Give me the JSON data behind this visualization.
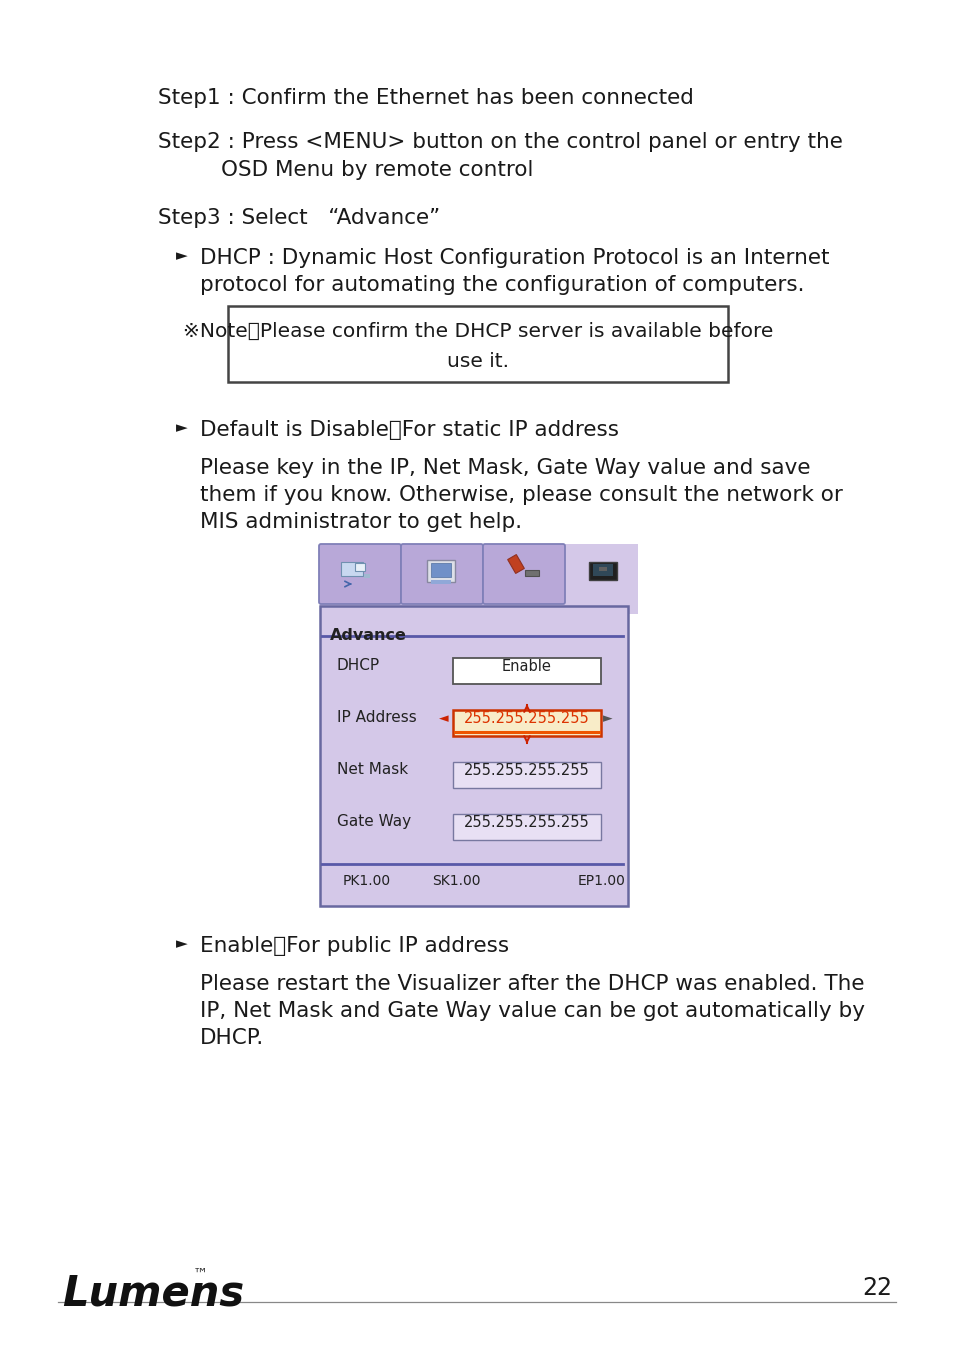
{
  "bg_color": "#ffffff",
  "page_number": "22",
  "step1": "Step1 : Confirm the Ethernet has been connected",
  "step2_line1": "Step2 : Press <MENU> button on the control panel or entry the",
  "step2_line2": "OSD Menu by remote control",
  "step3": "Step3 : Select   “Advance”",
  "bullet1_line1": "DHCP : Dynamic Host Configuration Protocol is an Internet",
  "bullet1_line2": "protocol for automating the configuration of computers.",
  "note_line1": "※Note：Please confirm the DHCP server is available before",
  "note_line2": "use it.",
  "bullet2": "Default is Disable：For static IP address",
  "para1_line1": "Please key in the IP, Net Mask, Gate Way value and save",
  "para1_line2": "them if you know. Otherwise, please consult the network or",
  "para1_line3": "MIS administrator to get help.",
  "bullet3": "Enable：For public IP address",
  "para2_line1": "Please restart the Visualizer after the DHCP was enabled. The",
  "para2_line2": "IP, Net Mask and Gate Way value can be got automatically by",
  "para2_line3": "DHCP.",
  "osd_bg": "#d4c8e8",
  "osd_tab_bg": "#b8a8d8",
  "osd_border": "#6868a0",
  "osd_title": "Advance",
  "osd_field1": "DHCP",
  "osd_value1": "Enable",
  "osd_field2": "IP Address",
  "osd_value2": "255.255.255.255",
  "osd_field3": "Net Mask",
  "osd_value3": "255.255.255.255",
  "osd_field4": "Gate Way",
  "osd_value4": "255.255.255.255",
  "osd_footer1": "PK1.00",
  "osd_footer2": "SK1.00",
  "osd_footer3": "EP1.00",
  "osd_ip_color": "#dd3300",
  "osd_ip_bg": "#f8ecc8"
}
